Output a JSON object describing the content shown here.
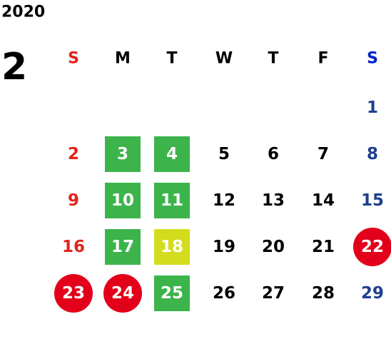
{
  "header": {
    "year": "2020",
    "month": "2"
  },
  "weekdays": [
    "S",
    "M",
    "T",
    "W",
    "T",
    "F",
    "S"
  ],
  "weekday_colors": [
    "#e2231a",
    "#000000",
    "#000000",
    "#000000",
    "#000000",
    "#000000",
    "#0022cc"
  ],
  "day_colors": [
    "#e2231a",
    "#000000",
    "#000000",
    "#000000",
    "#000000",
    "#000000",
    "#1f3f8f"
  ],
  "styles": {
    "green": {
      "shape": "square",
      "color": "#3cb44b"
    },
    "yellow": {
      "shape": "square",
      "color": "#d4dc1e"
    },
    "red": {
      "shape": "circle",
      "color": "#e2001a"
    }
  },
  "weeks": [
    [
      null,
      null,
      null,
      null,
      null,
      null,
      {
        "day": 1
      }
    ],
    [
      {
        "day": 2
      },
      {
        "day": 3,
        "style": "green"
      },
      {
        "day": 4,
        "style": "green"
      },
      {
        "day": 5
      },
      {
        "day": 6
      },
      {
        "day": 7
      },
      {
        "day": 8
      }
    ],
    [
      {
        "day": 9
      },
      {
        "day": 10,
        "style": "green"
      },
      {
        "day": 11,
        "style": "green"
      },
      {
        "day": 12
      },
      {
        "day": 13
      },
      {
        "day": 14
      },
      {
        "day": 15
      }
    ],
    [
      {
        "day": 16
      },
      {
        "day": 17,
        "style": "green"
      },
      {
        "day": 18,
        "style": "yellow"
      },
      {
        "day": 19
      },
      {
        "day": 20
      },
      {
        "day": 21
      },
      {
        "day": 22,
        "style": "red"
      }
    ],
    [
      {
        "day": 23,
        "style": "red"
      },
      {
        "day": 24,
        "style": "red"
      },
      {
        "day": 25,
        "style": "green"
      },
      {
        "day": 26
      },
      {
        "day": 27
      },
      {
        "day": 28
      },
      {
        "day": 29
      }
    ]
  ]
}
